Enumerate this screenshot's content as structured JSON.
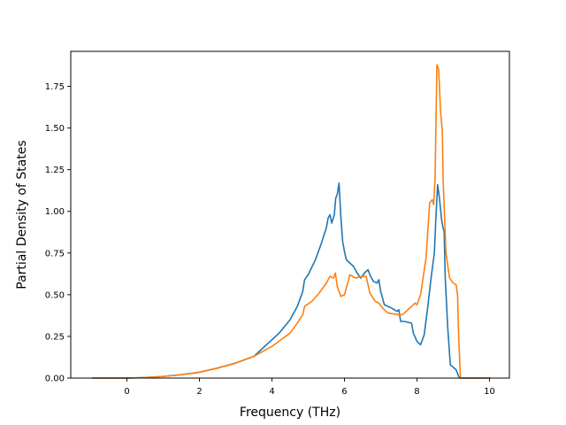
{
  "chart_data": {
    "type": "line",
    "title": "",
    "xlabel": "Frequency (THz)",
    "ylabel": "Partial Density of States",
    "xlim": [
      -1.55,
      10.55
    ],
    "ylim": [
      0,
      1.96
    ],
    "xticks": [
      0,
      2,
      4,
      6,
      8,
      10
    ],
    "xtick_labels": [
      "0",
      "2",
      "4",
      "6",
      "8",
      "10"
    ],
    "yticks": [
      0,
      0.25,
      0.5,
      0.75,
      1.0,
      1.25,
      1.5,
      1.75
    ],
    "ytick_labels": [
      "0.00",
      "0.25",
      "0.50",
      "0.75",
      "1.00",
      "1.25",
      "1.50",
      "1.75"
    ],
    "grid": false,
    "legend": "none",
    "series": [
      {
        "color": "#1f77b4",
        "points": [
          [
            -0.95,
            0
          ],
          [
            0,
            0
          ],
          [
            0.5,
            0.003
          ],
          [
            1.0,
            0.01
          ],
          [
            1.5,
            0.02
          ],
          [
            2.0,
            0.035
          ],
          [
            2.5,
            0.06
          ],
          [
            3.0,
            0.09
          ],
          [
            3.5,
            0.13
          ],
          [
            3.6,
            0.15
          ],
          [
            3.7,
            0.17
          ],
          [
            3.9,
            0.21
          ],
          [
            4.2,
            0.27
          ],
          [
            4.5,
            0.35
          ],
          [
            4.7,
            0.43
          ],
          [
            4.85,
            0.52
          ],
          [
            4.9,
            0.59
          ],
          [
            5.0,
            0.62
          ],
          [
            5.2,
            0.71
          ],
          [
            5.35,
            0.8
          ],
          [
            5.5,
            0.9
          ],
          [
            5.55,
            0.96
          ],
          [
            5.6,
            0.98
          ],
          [
            5.65,
            0.93
          ],
          [
            5.72,
            0.98
          ],
          [
            5.76,
            1.08
          ],
          [
            5.8,
            1.1
          ],
          [
            5.85,
            1.17
          ],
          [
            5.9,
            0.97
          ],
          [
            5.95,
            0.82
          ],
          [
            6.0,
            0.76
          ],
          [
            6.05,
            0.71
          ],
          [
            6.15,
            0.69
          ],
          [
            6.25,
            0.67
          ],
          [
            6.35,
            0.63
          ],
          [
            6.45,
            0.6
          ],
          [
            6.55,
            0.63
          ],
          [
            6.65,
            0.65
          ],
          [
            6.72,
            0.61
          ],
          [
            6.8,
            0.58
          ],
          [
            6.9,
            0.57
          ],
          [
            6.95,
            0.59
          ],
          [
            7.0,
            0.52
          ],
          [
            7.1,
            0.44
          ],
          [
            7.3,
            0.42
          ],
          [
            7.45,
            0.4
          ],
          [
            7.5,
            0.41
          ],
          [
            7.55,
            0.34
          ],
          [
            7.65,
            0.34
          ],
          [
            7.85,
            0.33
          ],
          [
            7.9,
            0.27
          ],
          [
            8.0,
            0.22
          ],
          [
            8.1,
            0.2
          ],
          [
            8.2,
            0.26
          ],
          [
            8.3,
            0.43
          ],
          [
            8.4,
            0.62
          ],
          [
            8.48,
            0.75
          ],
          [
            8.52,
            0.95
          ],
          [
            8.57,
            1.16
          ],
          [
            8.62,
            1.08
          ],
          [
            8.68,
            0.95
          ],
          [
            8.72,
            0.9
          ],
          [
            8.75,
            0.88
          ],
          [
            8.78,
            0.6
          ],
          [
            8.85,
            0.3
          ],
          [
            8.92,
            0.08
          ],
          [
            9.08,
            0.05
          ],
          [
            9.15,
            0.01
          ],
          [
            9.2,
            0
          ],
          [
            10.0,
            0
          ]
        ]
      },
      {
        "color": "#ff7f0e",
        "points": [
          [
            -0.95,
            0
          ],
          [
            0,
            0
          ],
          [
            0.5,
            0.003
          ],
          [
            1.0,
            0.01
          ],
          [
            1.5,
            0.02
          ],
          [
            2.0,
            0.035
          ],
          [
            2.5,
            0.06
          ],
          [
            3.0,
            0.09
          ],
          [
            3.5,
            0.13
          ],
          [
            4.0,
            0.19
          ],
          [
            4.5,
            0.27
          ],
          [
            4.7,
            0.33
          ],
          [
            4.85,
            0.38
          ],
          [
            4.9,
            0.43
          ],
          [
            5.1,
            0.46
          ],
          [
            5.3,
            0.51
          ],
          [
            5.5,
            0.57
          ],
          [
            5.6,
            0.61
          ],
          [
            5.7,
            0.6
          ],
          [
            5.75,
            0.63
          ],
          [
            5.8,
            0.55
          ],
          [
            5.9,
            0.49
          ],
          [
            6.0,
            0.5
          ],
          [
            6.1,
            0.58
          ],
          [
            6.15,
            0.62
          ],
          [
            6.3,
            0.6
          ],
          [
            6.5,
            0.61
          ],
          [
            6.6,
            0.61
          ],
          [
            6.7,
            0.51
          ],
          [
            6.85,
            0.46
          ],
          [
            6.95,
            0.45
          ],
          [
            7.05,
            0.42
          ],
          [
            7.2,
            0.39
          ],
          [
            7.5,
            0.38
          ],
          [
            7.6,
            0.38
          ],
          [
            7.8,
            0.42
          ],
          [
            7.95,
            0.45
          ],
          [
            8.0,
            0.44
          ],
          [
            8.1,
            0.5
          ],
          [
            8.25,
            0.72
          ],
          [
            8.35,
            1.05
          ],
          [
            8.42,
            1.07
          ],
          [
            8.46,
            1.04
          ],
          [
            8.5,
            1.2
          ],
          [
            8.55,
            1.88
          ],
          [
            8.6,
            1.85
          ],
          [
            8.65,
            1.6
          ],
          [
            8.7,
            1.48
          ],
          [
            8.72,
            1.2
          ],
          [
            8.8,
            0.75
          ],
          [
            8.9,
            0.6
          ],
          [
            9.0,
            0.57
          ],
          [
            9.08,
            0.56
          ],
          [
            9.12,
            0.5
          ],
          [
            9.15,
            0.25
          ],
          [
            9.2,
            0
          ],
          [
            10.0,
            0
          ]
        ]
      }
    ]
  }
}
